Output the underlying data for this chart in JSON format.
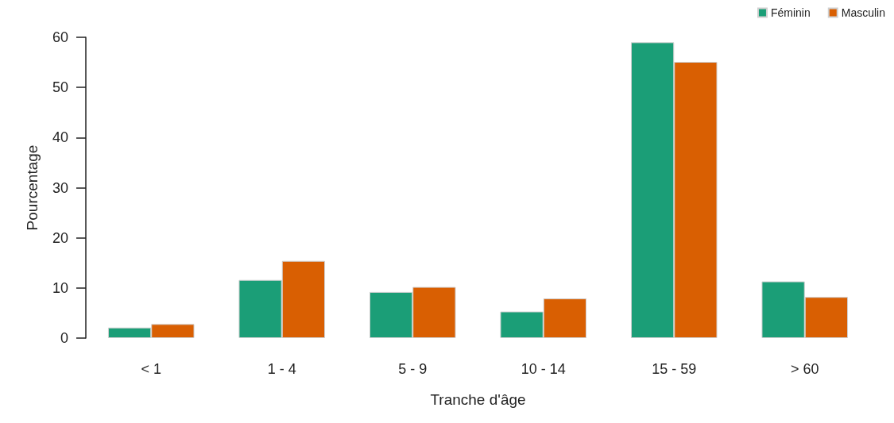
{
  "chart_data": {
    "type": "bar",
    "xlabel": "Tranche d'âge",
    "ylabel": "Pourcentage",
    "categories": [
      "< 1",
      "1 - 4",
      "5 - 9",
      "10 - 14",
      "15 - 59",
      "> 60"
    ],
    "series": [
      {
        "name": "Féminin",
        "color": "#1b9e77",
        "values": [
          2.1,
          11.6,
          9.2,
          5.3,
          59.0,
          11.3
        ]
      },
      {
        "name": "Masculin",
        "color": "#d95f02",
        "values": [
          2.8,
          15.4,
          10.2,
          7.9,
          55.1,
          8.2
        ]
      }
    ],
    "ylim": [
      0,
      60
    ],
    "yticks": [
      0,
      10,
      20,
      30,
      40,
      50,
      60
    ],
    "grid": false,
    "legend": "top right"
  }
}
